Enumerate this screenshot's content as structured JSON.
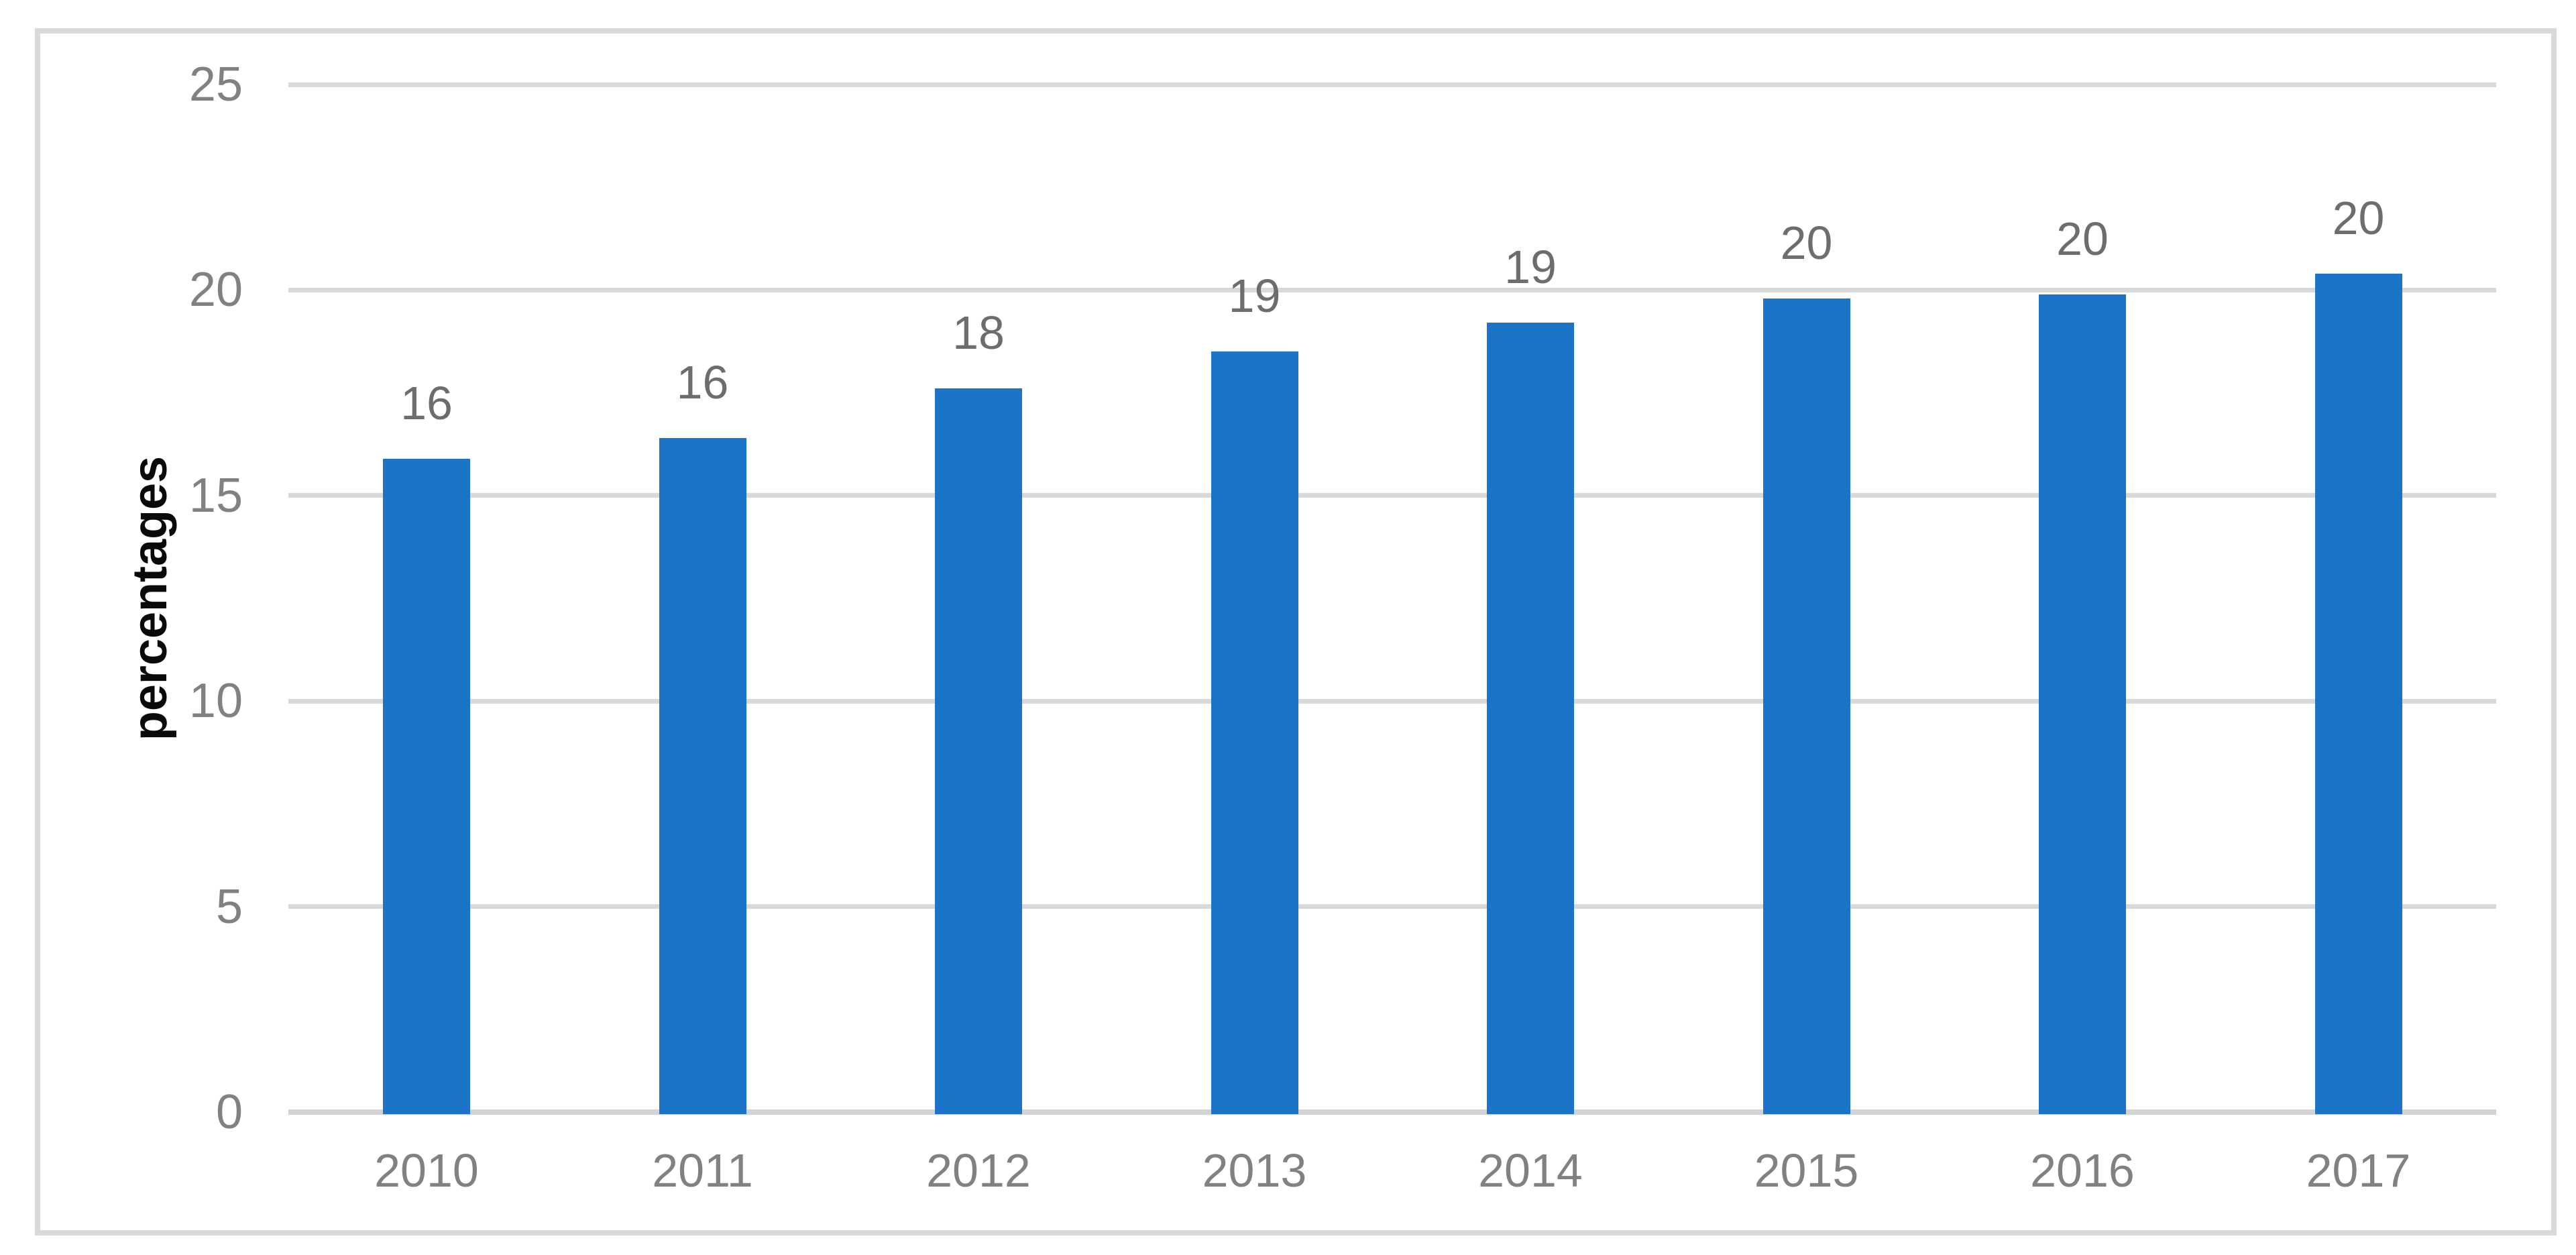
{
  "chart_data": {
    "type": "bar",
    "title": "",
    "categories": [
      "2010",
      "2011",
      "2012",
      "2013",
      "2014",
      "2015",
      "2016",
      "2017"
    ],
    "values": [
      15.9,
      16.4,
      17.6,
      18.5,
      19.2,
      19.8,
      19.9,
      20.4
    ],
    "data_labels": [
      "16",
      "16",
      "18",
      "19",
      "19",
      "20",
      "20",
      "20"
    ],
    "xlabel": "",
    "ylabel": "percentages",
    "ylim": [
      0,
      25
    ],
    "yticks": [
      0,
      5,
      10,
      15,
      20,
      25
    ],
    "grid": true,
    "legend": "none",
    "bar_count": 8,
    "colors": {
      "bar": "#1B74C8",
      "gridline": "#D9D9D9",
      "axis_line": "#D3D3D3",
      "tick_label": "#818181",
      "data_label": "#6D6D6D",
      "axis_title": "#0A0A0A",
      "frame_border": "#D9D9D9",
      "background": "#FFFFFF"
    }
  }
}
